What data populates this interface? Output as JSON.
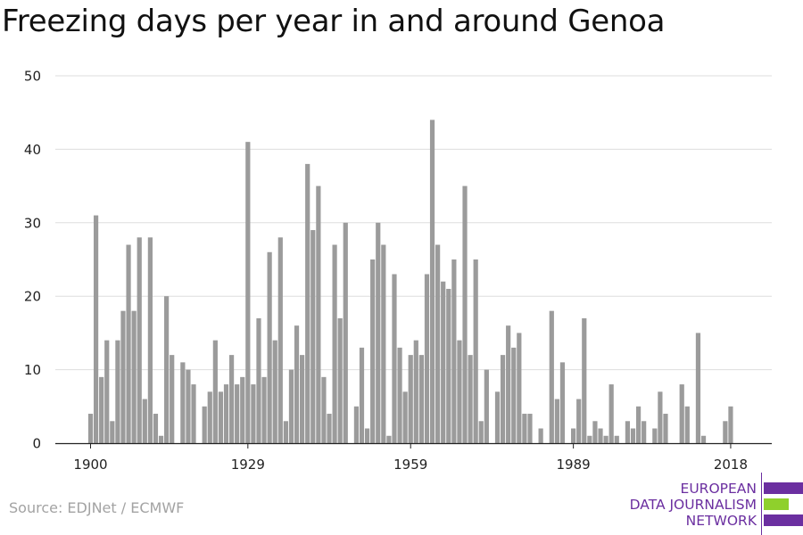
{
  "title": "Freezing days per year in and around Genoa",
  "source": "Source: EDJNet / ECMWF",
  "logo": {
    "line1": "EUROPEAN",
    "line2": "DATA JOURNALISM",
    "line3": "NETWORK",
    "colors": {
      "purple": "#6b2fa0",
      "green": "#8fd02c"
    }
  },
  "chart_data": {
    "type": "bar",
    "title": "Freezing days per year in and around Genoa",
    "xlabel": "",
    "ylabel": "",
    "x": [
      1900,
      1901,
      1902,
      1903,
      1904,
      1905,
      1906,
      1907,
      1908,
      1909,
      1910,
      1911,
      1912,
      1913,
      1914,
      1915,
      1916,
      1917,
      1918,
      1919,
      1920,
      1921,
      1922,
      1923,
      1924,
      1925,
      1926,
      1927,
      1928,
      1929,
      1930,
      1931,
      1932,
      1933,
      1934,
      1935,
      1936,
      1937,
      1938,
      1939,
      1940,
      1941,
      1942,
      1943,
      1944,
      1945,
      1946,
      1947,
      1948,
      1949,
      1950,
      1951,
      1952,
      1953,
      1954,
      1955,
      1956,
      1957,
      1958,
      1959,
      1960,
      1961,
      1962,
      1963,
      1964,
      1965,
      1966,
      1967,
      1968,
      1969,
      1970,
      1971,
      1972,
      1973,
      1974,
      1975,
      1976,
      1977,
      1978,
      1979,
      1980,
      1981,
      1982,
      1983,
      1984,
      1985,
      1986,
      1987,
      1988,
      1989,
      1990,
      1991,
      1992,
      1993,
      1994,
      1995,
      1996,
      1997,
      1998,
      1999,
      2000,
      2001,
      2002,
      2003,
      2004,
      2005,
      2006,
      2007,
      2008,
      2009,
      2010,
      2011,
      2012,
      2013,
      2014,
      2015,
      2016,
      2017,
      2018
    ],
    "values": [
      4,
      31,
      9,
      14,
      3,
      14,
      18,
      27,
      18,
      28,
      6,
      28,
      4,
      1,
      20,
      12,
      0,
      11,
      10,
      8,
      0,
      5,
      7,
      14,
      7,
      8,
      12,
      8,
      9,
      41,
      8,
      17,
      9,
      26,
      14,
      28,
      3,
      10,
      16,
      12,
      38,
      29,
      35,
      9,
      4,
      27,
      17,
      30,
      0,
      5,
      13,
      2,
      25,
      30,
      27,
      1,
      23,
      13,
      7,
      12,
      14,
      12,
      23,
      44,
      27,
      22,
      21,
      25,
      14,
      35,
      12,
      25,
      3,
      10,
      0,
      7,
      12,
      16,
      13,
      15,
      4,
      4,
      0,
      2,
      0,
      18,
      6,
      11,
      0,
      2,
      6,
      17,
      1,
      3,
      2,
      1,
      8,
      1,
      0,
      3,
      2,
      5,
      3,
      0,
      2,
      7,
      4,
      0,
      0,
      8,
      5,
      0,
      15,
      1,
      0,
      0,
      0,
      3,
      5
    ],
    "ylim": [
      0,
      50
    ],
    "yticks": [
      0,
      10,
      20,
      30,
      40,
      50
    ],
    "xticks": [
      "1900",
      "1929",
      "1959",
      "1989",
      "2018"
    ],
    "grid": true,
    "colors": {
      "bar": "#9b9b9b",
      "grid": "#dddddd",
      "axis": "#222222"
    }
  }
}
